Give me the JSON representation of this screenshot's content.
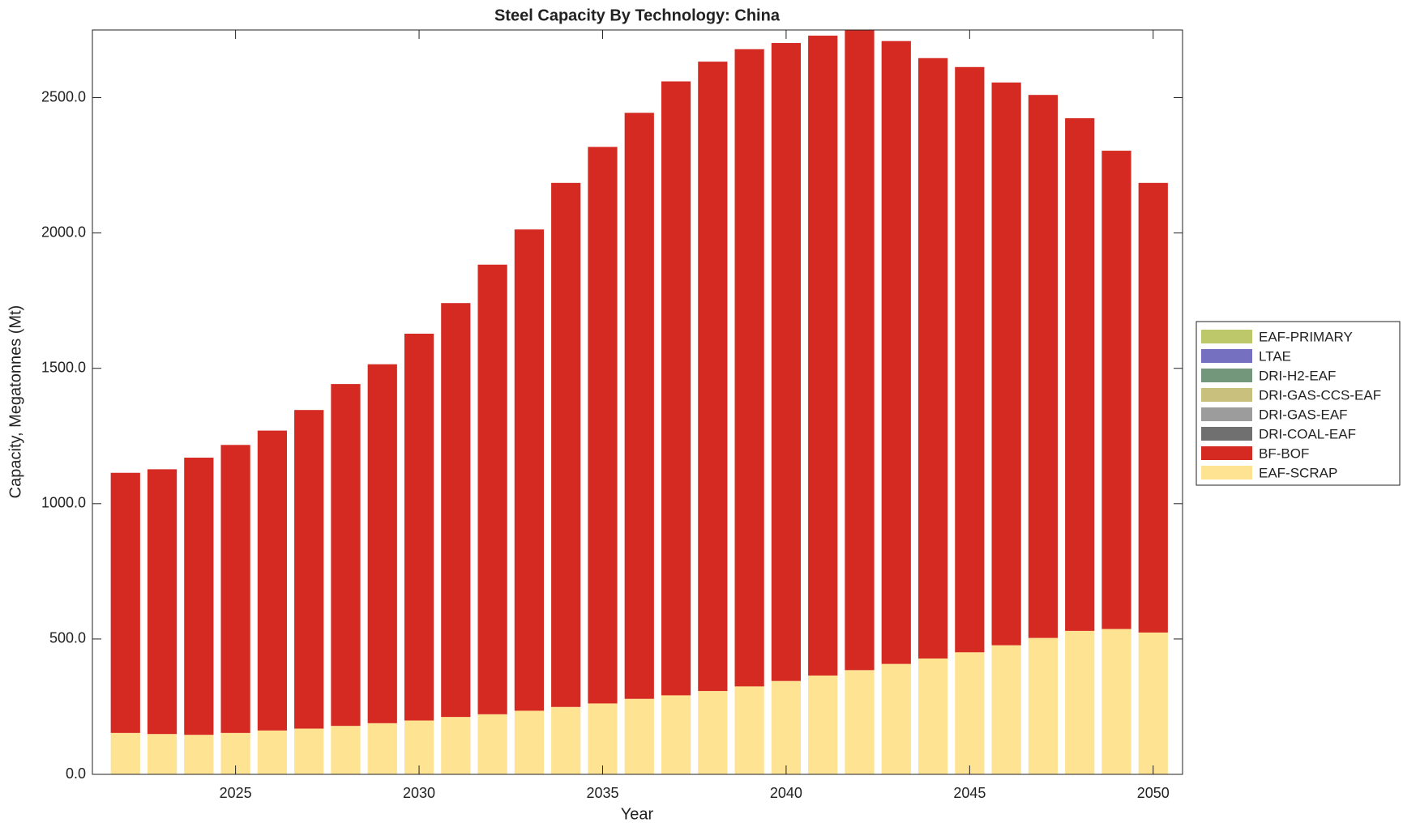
{
  "chart_data": {
    "type": "stacked_bar",
    "title": "Steel Capacity By Technology: China",
    "x_label": "Year",
    "y_label": "Capacity, Megatonnes (Mt)",
    "x": [
      2022,
      2023,
      2024,
      2025,
      2026,
      2027,
      2028,
      2029,
      2030,
      2031,
      2032,
      2033,
      2034,
      2035,
      2036,
      2037,
      2038,
      2039,
      2040,
      2041,
      2042,
      2043,
      2044,
      2045,
      2046,
      2047,
      2048,
      2049,
      2050
    ],
    "series": [
      {
        "name": "EAF-SCRAP",
        "color": "#fde392",
        "values": [
          153,
          149,
          146,
          153,
          162,
          169,
          179,
          189,
          199,
          212,
          222,
          235,
          249,
          262,
          279,
          292,
          308,
          325,
          345,
          365,
          385,
          408,
          428,
          451,
          477,
          504,
          530,
          537,
          524
        ]
      },
      {
        "name": "BF-BOF",
        "color": "#d42a22",
        "values": [
          961,
          978,
          1024,
          1064,
          1108,
          1177,
          1263,
          1326,
          1429,
          1529,
          1661,
          1778,
          1936,
          2056,
          2165,
          2268,
          2325,
          2354,
          2357,
          2364,
          2365,
          2301,
          2218,
          2162,
          2079,
          2006,
          1894,
          1767,
          1661
        ]
      },
      {
        "name": "DRI-COAL-EAF",
        "color": "#707070",
        "values": [
          0,
          0,
          0,
          0,
          0,
          0,
          0,
          0,
          0,
          0,
          0,
          0,
          0,
          0,
          0,
          0,
          0,
          0,
          0,
          0,
          0,
          0,
          0,
          0,
          0,
          0,
          0,
          0,
          0
        ]
      },
      {
        "name": "DRI-GAS-EAF",
        "color": "#9c9c9c",
        "values": [
          0,
          0,
          0,
          0,
          0,
          0,
          0,
          0,
          0,
          0,
          0,
          0,
          0,
          0,
          0,
          0,
          0,
          0,
          0,
          0,
          0,
          0,
          0,
          0,
          0,
          0,
          0,
          0,
          0
        ]
      },
      {
        "name": "DRI-GAS-CCS-EAF",
        "color": "#c8c07c",
        "values": [
          0,
          0,
          0,
          0,
          0,
          0,
          0,
          0,
          0,
          0,
          0,
          0,
          0,
          0,
          0,
          0,
          0,
          0,
          0,
          0,
          0,
          0,
          0,
          0,
          0,
          0,
          0,
          0,
          0
        ]
      },
      {
        "name": "DRI-H2-EAF",
        "color": "#72977a",
        "values": [
          0,
          0,
          0,
          0,
          0,
          0,
          0,
          0,
          0,
          0,
          0,
          0,
          0,
          0,
          0,
          0,
          0,
          0,
          0,
          0,
          0,
          0,
          0,
          0,
          0,
          0,
          0,
          0,
          0
        ]
      },
      {
        "name": "LTAE",
        "color": "#7570c0",
        "values": [
          0,
          0,
          0,
          0,
          0,
          0,
          0,
          0,
          0,
          0,
          0,
          0,
          0,
          0,
          0,
          0,
          0,
          0,
          0,
          0,
          0,
          0,
          0,
          0,
          0,
          0,
          0,
          0,
          0
        ]
      },
      {
        "name": "EAF-PRIMARY",
        "color": "#bcc86a",
        "values": [
          0,
          0,
          0,
          0,
          0,
          0,
          0,
          0,
          0,
          0,
          0,
          0,
          0,
          0,
          0,
          0,
          0,
          0,
          0,
          0,
          0,
          0,
          0,
          0,
          0,
          0,
          0,
          0,
          0
        ]
      }
    ],
    "xlim": [
      2021.1,
      2050.8
    ],
    "xticks": [
      2025,
      2030,
      2035,
      2040,
      2045,
      2050
    ],
    "ylim": [
      0,
      2750
    ],
    "yticks": [
      {
        "value": 0,
        "label": "0.0"
      },
      {
        "value": 500,
        "label": "500.0"
      },
      {
        "value": 1000,
        "label": "1000.0"
      },
      {
        "value": 1500,
        "label": "1500.0"
      },
      {
        "value": 2000,
        "label": "2000.0"
      },
      {
        "value": 2500,
        "label": "2500.0"
      }
    ],
    "legend": "outside-right",
    "grid": false
  }
}
